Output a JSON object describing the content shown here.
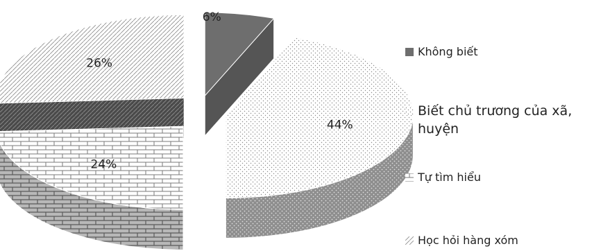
{
  "chart_data": {
    "type": "pie",
    "title": "",
    "categories": [
      "Không biết",
      "Biết chủ trương của xã, huyện",
      "Tự tìm hiểu",
      "Học hỏi hàng xóm"
    ],
    "values": [
      6,
      44,
      24,
      26
    ],
    "labels": [
      "6%",
      "44%",
      "24%",
      "26%"
    ],
    "legend_placement": "right",
    "exploded": true,
    "three_d": true
  },
  "legend": {
    "items": [
      {
        "label": "Không biết",
        "pattern": "solid-dark-gray"
      },
      {
        "label": "Biết chủ trương của xã,",
        "label_line2": "huyện",
        "pattern": "fine-dots"
      },
      {
        "label": "Tự tìm hiểu",
        "pattern": "brick"
      },
      {
        "label": "Học hỏi hàng xóm",
        "pattern": "diagonal-stripes"
      }
    ]
  },
  "colors": {
    "solid_top": "#6e6e6e",
    "solid_side": "#555555",
    "pattern_ink": "#8a8a8a",
    "side_base": "#9a9a9a"
  }
}
